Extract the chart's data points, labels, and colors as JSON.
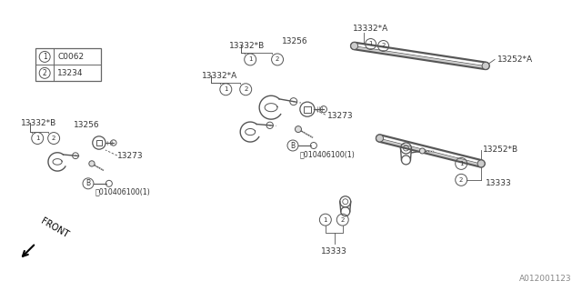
{
  "bg_color": "#ffffff",
  "line_color": "#555555",
  "text_color": "#333333",
  "border_color": "#666666",
  "legend_items": [
    {
      "symbol": "1",
      "code": "C0062"
    },
    {
      "symbol": "2",
      "code": "13234"
    }
  ],
  "watermark": "A012001123",
  "figsize": [
    6.4,
    3.2
  ],
  "dpi": 100
}
